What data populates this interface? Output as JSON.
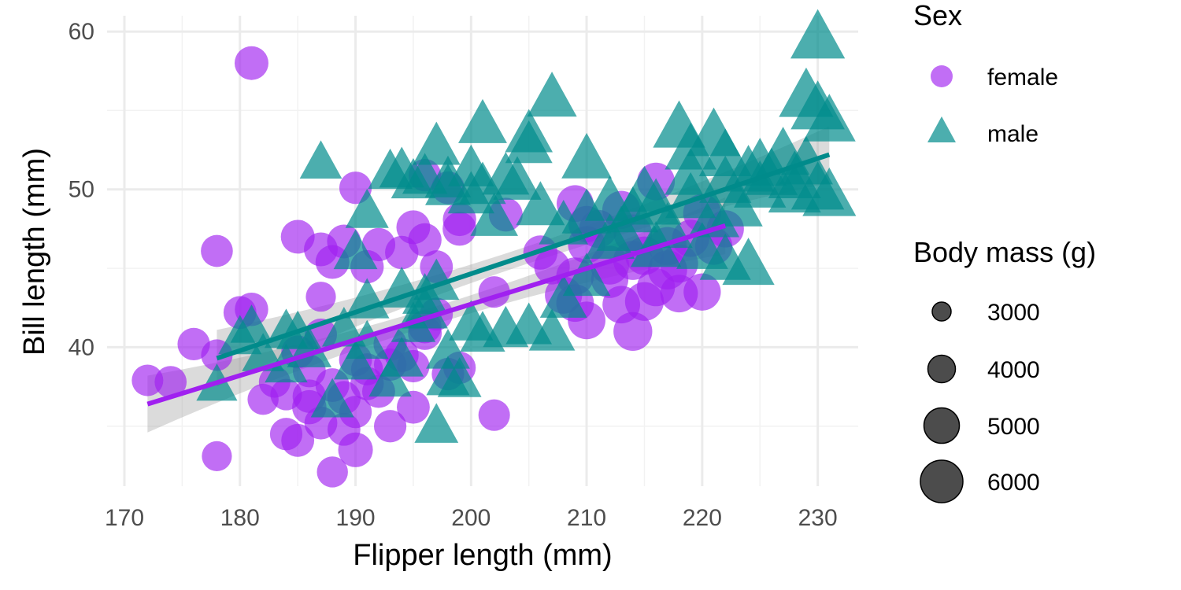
{
  "chart_data": {
    "type": "scatter",
    "title": "",
    "xlabel": "Flipper length (mm)",
    "ylabel": "Bill length (mm)",
    "xlim": [
      168.5,
      233.5
    ],
    "ylim": [
      31.2,
      61.0
    ],
    "x_ticks": [
      170,
      180,
      190,
      200,
      210,
      220,
      230
    ],
    "y_ticks": [
      40,
      50,
      60
    ],
    "grid": true,
    "legend_position": "right",
    "size_variable": "Body mass (g)",
    "size_legend": {
      "title": "Body mass (g)",
      "entries": [
        {
          "label": "3000",
          "value": 3000
        },
        {
          "label": "4000",
          "value": 4000
        },
        {
          "label": "5000",
          "value": 5000
        },
        {
          "label": "6000",
          "value": 6000
        }
      ]
    },
    "color_legend": {
      "title": "Sex",
      "entries": [
        {
          "label": "female",
          "shape": "circle",
          "color": "#A020F0"
        },
        {
          "label": "male",
          "shape": "triangle",
          "color": "#008B8B"
        }
      ]
    },
    "series": [
      {
        "name": "female",
        "shape": "circle",
        "color": "#A020F0",
        "trend": {
          "x": [
            172,
            222
          ],
          "y": [
            36.4,
            47.7
          ]
        },
        "points": [
          [
            181,
            58.0,
            3800
          ],
          [
            172,
            37.9,
            3300
          ],
          [
            174,
            37.8,
            3400
          ],
          [
            176,
            40.2,
            3500
          ],
          [
            178,
            46.1,
            3400
          ],
          [
            178,
            33.1,
            3000
          ],
          [
            178,
            39.5,
            3300
          ],
          [
            180,
            42.2,
            3600
          ],
          [
            181,
            42.4,
            3700
          ],
          [
            182,
            36.7,
            3200
          ],
          [
            183,
            37.8,
            3300
          ],
          [
            184,
            34.5,
            3500
          ],
          [
            185,
            34.1,
            3600
          ],
          [
            185,
            47.0,
            3800
          ],
          [
            186,
            36.2,
            3900
          ],
          [
            187,
            40.8,
            3450
          ],
          [
            187,
            46.2,
            3800
          ],
          [
            187,
            43.2,
            3000
          ],
          [
            188,
            45.4,
            3800
          ],
          [
            188,
            32.1,
            3200
          ],
          [
            189,
            46.7,
            3800
          ],
          [
            189,
            34.8,
            3600
          ],
          [
            190,
            50.1,
            3500
          ],
          [
            190,
            33.5,
            4000
          ],
          [
            190,
            39.2,
            3600
          ],
          [
            191,
            45.1,
            3700
          ],
          [
            192,
            46.5,
            3700
          ],
          [
            193,
            40.2,
            3700
          ],
          [
            193,
            35.0,
            3500
          ],
          [
            194,
            46.0,
            3700
          ],
          [
            195,
            47.6,
            3800
          ],
          [
            195,
            36.2,
            3600
          ],
          [
            195,
            38.8,
            3500
          ],
          [
            196,
            46.8,
            3700
          ],
          [
            196,
            40.9,
            3800
          ],
          [
            196,
            50.9,
            3500
          ],
          [
            197,
            45.1,
            3600
          ],
          [
            198,
            50.1,
            3600
          ],
          [
            198,
            38.3,
            3500
          ],
          [
            199,
            47.5,
            3800
          ],
          [
            199,
            48.1,
            3700
          ],
          [
            199,
            38.7,
            3500
          ],
          [
            202,
            43.5,
            3300
          ],
          [
            202,
            35.7,
            3300
          ],
          [
            203,
            48.4,
            3800
          ],
          [
            207,
            45.1,
            4200
          ],
          [
            208,
            43.3,
            4600
          ],
          [
            209,
            44.5,
            4700
          ],
          [
            209,
            42.8,
            4700
          ],
          [
            210,
            41.7,
            4700
          ],
          [
            210,
            46.5,
            4600
          ],
          [
            211,
            47.5,
            4800
          ],
          [
            212,
            45.2,
            5000
          ],
          [
            213,
            42.7,
            4700
          ],
          [
            213,
            48.7,
            4800
          ],
          [
            214,
            45.5,
            5100
          ],
          [
            214,
            41.0,
            5000
          ],
          [
            215,
            42.9,
            5000
          ],
          [
            215,
            45.8,
            4900
          ],
          [
            216,
            50.5,
            4700
          ],
          [
            217,
            46.4,
            4900
          ],
          [
            217,
            44.9,
            5100
          ],
          [
            218,
            43.4,
            4700
          ],
          [
            218,
            45.3,
            4800
          ],
          [
            219,
            46.9,
            4600
          ],
          [
            220,
            43.5,
            4600
          ],
          [
            220,
            48.5,
            4800
          ],
          [
            221,
            46.4,
            4600
          ],
          [
            222,
            47.5,
            4600
          ],
          [
            184,
            37.0,
            3300
          ],
          [
            186,
            38.5,
            3600
          ],
          [
            188,
            37.6,
            3800
          ],
          [
            190,
            35.9,
            3500
          ],
          [
            191,
            38.6,
            3400
          ],
          [
            192,
            37.2,
            3600
          ],
          [
            194,
            39.5,
            3800
          ],
          [
            196,
            41.3,
            3700
          ],
          [
            189,
            36.8,
            3700
          ],
          [
            187,
            35.2,
            3600
          ],
          [
            186,
            36.9,
            3700
          ],
          [
            191,
            37.7,
            3700
          ],
          [
            185,
            39.7,
            3600
          ],
          [
            193,
            38.9,
            3500
          ],
          [
            197,
            42.1,
            3600
          ],
          [
            206,
            46.0,
            3900
          ],
          [
            210,
            47.8,
            4400
          ],
          [
            212,
            44.3,
            4600
          ],
          [
            214,
            47.2,
            4900
          ],
          [
            216,
            43.8,
            4800
          ],
          [
            209,
            49.1,
            4500
          ]
        ]
      },
      {
        "name": "male",
        "shape": "triangle",
        "color": "#008B8B",
        "trend": {
          "x": [
            178,
            231
          ],
          "y": [
            39.3,
            52.2
          ]
        },
        "points": [
          [
            230,
            59.6,
            6000
          ],
          [
            207,
            55.8,
            5000
          ],
          [
            201,
            54.1,
            4800
          ],
          [
            229,
            55.9,
            6000
          ],
          [
            230,
            55.1,
            5900
          ],
          [
            231,
            54.3,
            5600
          ],
          [
            205,
            53.5,
            4600
          ],
          [
            221,
            53.4,
            5800
          ],
          [
            222,
            52.1,
            5600
          ],
          [
            218,
            53.9,
            5500
          ],
          [
            219,
            52.5,
            5400
          ],
          [
            210,
            51.9,
            5100
          ],
          [
            197,
            52.7,
            4600
          ],
          [
            187,
            51.7,
            3600
          ],
          [
            193,
            51.1,
            4000
          ],
          [
            194,
            51.2,
            4100
          ],
          [
            195,
            50.5,
            4000
          ],
          [
            196,
            50.8,
            4100
          ],
          [
            198,
            50.1,
            4200
          ],
          [
            200,
            51.3,
            4300
          ],
          [
            201,
            50.2,
            4400
          ],
          [
            203,
            50.8,
            4500
          ],
          [
            205,
            52.8,
            4500
          ],
          [
            212,
            49.2,
            5000
          ],
          [
            215,
            49.8,
            5200
          ],
          [
            222,
            50.4,
            5500
          ],
          [
            224,
            51.1,
            5400
          ],
          [
            226,
            50.9,
            5500
          ],
          [
            228,
            50.7,
            5600
          ],
          [
            230,
            50.0,
            5700
          ],
          [
            231,
            49.6,
            5800
          ],
          [
            228,
            49.8,
            5600
          ],
          [
            225,
            50.1,
            5500
          ],
          [
            223,
            48.9,
            5400
          ],
          [
            221,
            48.2,
            5300
          ],
          [
            219,
            49.4,
            5200
          ],
          [
            217,
            47.5,
            5100
          ],
          [
            216,
            49.0,
            5300
          ],
          [
            214,
            48.5,
            5200
          ],
          [
            210,
            48.4,
            5000
          ],
          [
            208,
            47.7,
            4900
          ],
          [
            212,
            46.8,
            5000
          ],
          [
            222,
            45.5,
            5300
          ],
          [
            220,
            46.2,
            5400
          ],
          [
            224,
            45.2,
            5500
          ],
          [
            191,
            48.6,
            3800
          ],
          [
            190,
            46.0,
            3900
          ],
          [
            185,
            40.9,
            3700
          ],
          [
            180,
            40.6,
            3800
          ],
          [
            178,
            37.6,
            3400
          ],
          [
            182,
            39.5,
            3600
          ],
          [
            184,
            41.0,
            3800
          ],
          [
            186,
            39.8,
            4000
          ],
          [
            189,
            41.1,
            3900
          ],
          [
            191,
            42.9,
            4000
          ],
          [
            193,
            37.9,
            3700
          ],
          [
            194,
            39.2,
            3900
          ],
          [
            195,
            41.4,
            4000
          ],
          [
            196,
            43.2,
            4100
          ],
          [
            197,
            44.1,
            4200
          ],
          [
            197,
            35.0,
            3900
          ],
          [
            198,
            38.0,
            3800
          ],
          [
            199,
            37.9,
            3900
          ],
          [
            200,
            41.5,
            4000
          ],
          [
            201,
            40.8,
            4100
          ],
          [
            203,
            41.1,
            4200
          ],
          [
            205,
            41.3,
            4300
          ],
          [
            207,
            40.9,
            4300
          ],
          [
            210,
            44.4,
            4600
          ],
          [
            208,
            43.0,
            4500
          ],
          [
            191,
            40.3,
            3700
          ],
          [
            188,
            36.6,
            3800
          ],
          [
            184,
            38.8,
            3700
          ],
          [
            181,
            41.3,
            3600
          ],
          [
            194,
            43.6,
            4100
          ],
          [
            196,
            42.3,
            4300
          ],
          [
            190,
            39.0,
            3800
          ],
          [
            198,
            39.7,
            3900
          ],
          [
            216,
            46.3,
            5200
          ],
          [
            213,
            47.3,
            5000
          ],
          [
            219,
            50.9,
            5400
          ],
          [
            225,
            51.5,
            5700
          ],
          [
            227,
            52.2,
            5700
          ],
          [
            229,
            51.6,
            5800
          ],
          [
            202,
            48.2,
            4600
          ],
          [
            204,
            50.5,
            4700
          ],
          [
            206,
            48.9,
            4800
          ],
          [
            198,
            50.6,
            4300
          ],
          [
            200,
            49.6,
            4400
          ]
        ]
      }
    ]
  }
}
